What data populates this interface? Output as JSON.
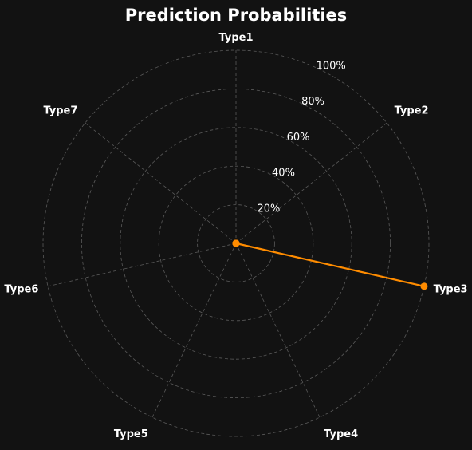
{
  "chart_data": {
    "type": "radar",
    "title": "Prediction Probabilities",
    "categories": [
      "Type1",
      "Type2",
      "Type3",
      "Type4",
      "Type5",
      "Type6",
      "Type7"
    ],
    "series": [
      {
        "values": [
          0.0,
          0.0,
          1.0,
          0.0,
          0.0,
          0.0,
          0.0
        ]
      }
    ],
    "rlim": [
      0,
      1.0
    ],
    "rticks": [
      0.2,
      0.4,
      0.6,
      0.8,
      1.0
    ],
    "rtick_labels": [
      "20%",
      "40%",
      "60%",
      "80%",
      "100%"
    ],
    "grid": true,
    "colors": {
      "background": "#121212",
      "series": "#ff8c00",
      "grid": "#5a5a5a",
      "text": "#ffffff"
    }
  }
}
